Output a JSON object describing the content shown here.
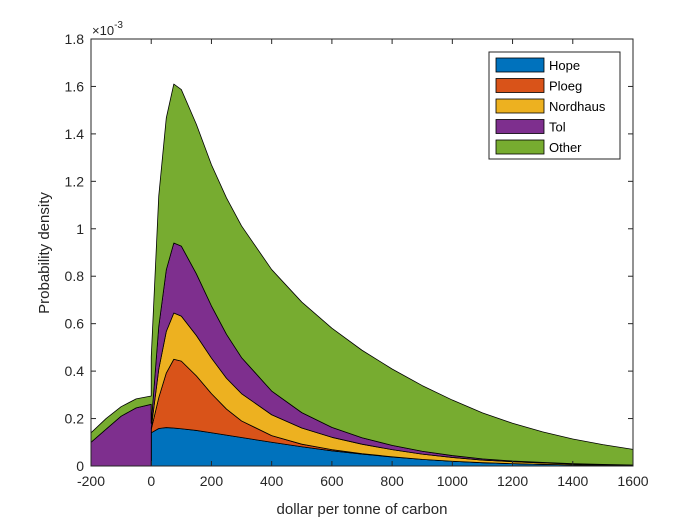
{
  "chart_data": {
    "type": "area",
    "stacked": true,
    "xlabel": "dollar per tonne of carbon",
    "ylabel": "Probability density",
    "xlim": [
      -200,
      1600
    ],
    "ylim": [
      0,
      0.0018
    ],
    "x_ticks": [
      -200,
      0,
      200,
      400,
      600,
      800,
      1000,
      1200,
      1400,
      1600
    ],
    "y_ticks": [
      0,
      0.0002,
      0.0004,
      0.0006,
      0.0008,
      0.001,
      0.0012,
      0.0014,
      0.0016,
      0.0018
    ],
    "x_tick_labels": [
      "-200",
      "0",
      "200",
      "400",
      "600",
      "800",
      "1000",
      "1200",
      "1400",
      "1600"
    ],
    "y_tick_labels": [
      "0",
      "0.2",
      "0.4",
      "0.6",
      "0.8",
      "1",
      "1.2",
      "1.4",
      "1.6",
      "1.8"
    ],
    "y_exponent_label": "×10",
    "y_exponent_power": "-3",
    "grid": false,
    "legend_position": "top-right",
    "x": [
      -200,
      -150,
      -100,
      -50,
      0,
      0.1,
      25,
      50,
      75,
      100,
      150,
      200,
      250,
      300,
      400,
      500,
      600,
      700,
      800,
      900,
      1000,
      1100,
      1200,
      1300,
      1400,
      1500,
      1600
    ],
    "series": [
      {
        "name": "Hope",
        "color": "#0072BD",
        "values": [
          0,
          0,
          0,
          0,
          0,
          0.00014,
          0.000158,
          0.000162,
          0.00016,
          0.000157,
          0.00015,
          0.00014,
          0.00013,
          0.00012,
          0.0001,
          8.1e-05,
          6.4e-05,
          5e-05,
          3.8e-05,
          2.8e-05,
          2e-05,
          1.4e-05,
          1e-05,
          7e-06,
          5e-06,
          3e-06,
          2e-06
        ]
      },
      {
        "name": "Ploeg",
        "color": "#D95319",
        "values": [
          0,
          0,
          0,
          0,
          0,
          1.5e-05,
          0.00013,
          0.00023,
          0.00029,
          0.000285,
          0.00023,
          0.000165,
          0.00011,
          7e-05,
          2.8e-05,
          1.1e-05,
          5e-06,
          2e-06,
          1e-06,
          0,
          0,
          0,
          0,
          0,
          0,
          0,
          0
        ]
      },
      {
        "name": "Nordhaus",
        "color": "#EDB120",
        "values": [
          0,
          0,
          0,
          0,
          0,
          5e-06,
          0.00012,
          0.000175,
          0.000195,
          0.00019,
          0.00017,
          0.00015,
          0.00013,
          0.000115,
          8.8e-05,
          6.8e-05,
          5.2e-05,
          4e-05,
          3e-05,
          2.2e-05,
          1.6e-05,
          1.1e-05,
          8e-06,
          6e-06,
          4e-06,
          3e-06,
          2e-06
        ]
      },
      {
        "name": "Tol",
        "color": "#7E2F8E",
        "values": [
          0.0001,
          0.000155,
          0.00021,
          0.000245,
          0.00026,
          2e-05,
          0.00018,
          0.00026,
          0.000295,
          0.000295,
          0.00026,
          0.00022,
          0.000185,
          0.000152,
          0.0001,
          6.5e-05,
          4.2e-05,
          2.7e-05,
          1.8e-05,
          1.2e-05,
          8e-06,
          5e-06,
          3e-06,
          2e-06,
          1e-06,
          1e-06,
          0
        ]
      },
      {
        "name": "Other",
        "color": "#77AC30",
        "values": [
          4e-05,
          4.5e-05,
          4e-05,
          3.8e-05,
          3.5e-05,
          0.00028,
          0.00055,
          0.00064,
          0.00067,
          0.00066,
          0.00063,
          0.000595,
          0.000575,
          0.000555,
          0.000512,
          0.000466,
          0.000418,
          0.000369,
          0.000322,
          0.000277,
          0.000234,
          0.000194,
          0.000159,
          0.000129,
          0.000104,
          8.3e-05,
          6.6e-05
        ]
      }
    ]
  }
}
